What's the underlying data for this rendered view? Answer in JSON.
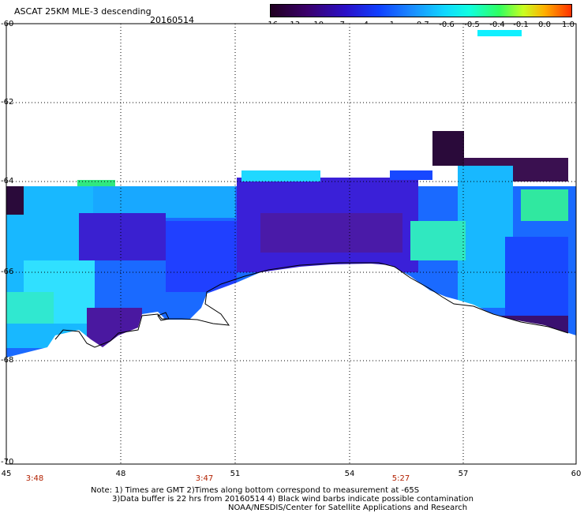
{
  "header": {
    "title": "ASCAT 25KM MLE-3 descending",
    "date": "20160514"
  },
  "colorbar": {
    "ticks": [
      "-16",
      "-13",
      "-10",
      "-7",
      "-4",
      "-1",
      "-0.7",
      "-0.6",
      "-0.5",
      "-0.4",
      "-0.1",
      "0.0",
      "1.0"
    ]
  },
  "axes": {
    "lat_labels": [
      "-60",
      "-62",
      "-64",
      "-66",
      "-68",
      "-70"
    ],
    "lon_labels": [
      "45",
      "48",
      "51",
      "54",
      "57",
      "60"
    ],
    "time_labels": [
      "3:48",
      "3:47",
      "5:27"
    ]
  },
  "notes": {
    "line1": "Note: 1) Times are GMT 2)Times along bottom correspond to measurement at -65S",
    "line2": "3)Data buffer is 22 hrs from 20160514 4) Black wind barbs indicate possible contamination",
    "line3": "NOAA/NESDIS/Center for Satellite Applications and Research"
  },
  "colors": {
    "deep_purple": "#2a0a4a",
    "purple": "#4a18a0",
    "blue_violet": "#3030e0",
    "blue": "#1848ff",
    "cyan": "#18c8ff",
    "aqua": "#30e8d8",
    "green": "#30e880",
    "coastline": "#000000",
    "time_label": "#b22000"
  }
}
